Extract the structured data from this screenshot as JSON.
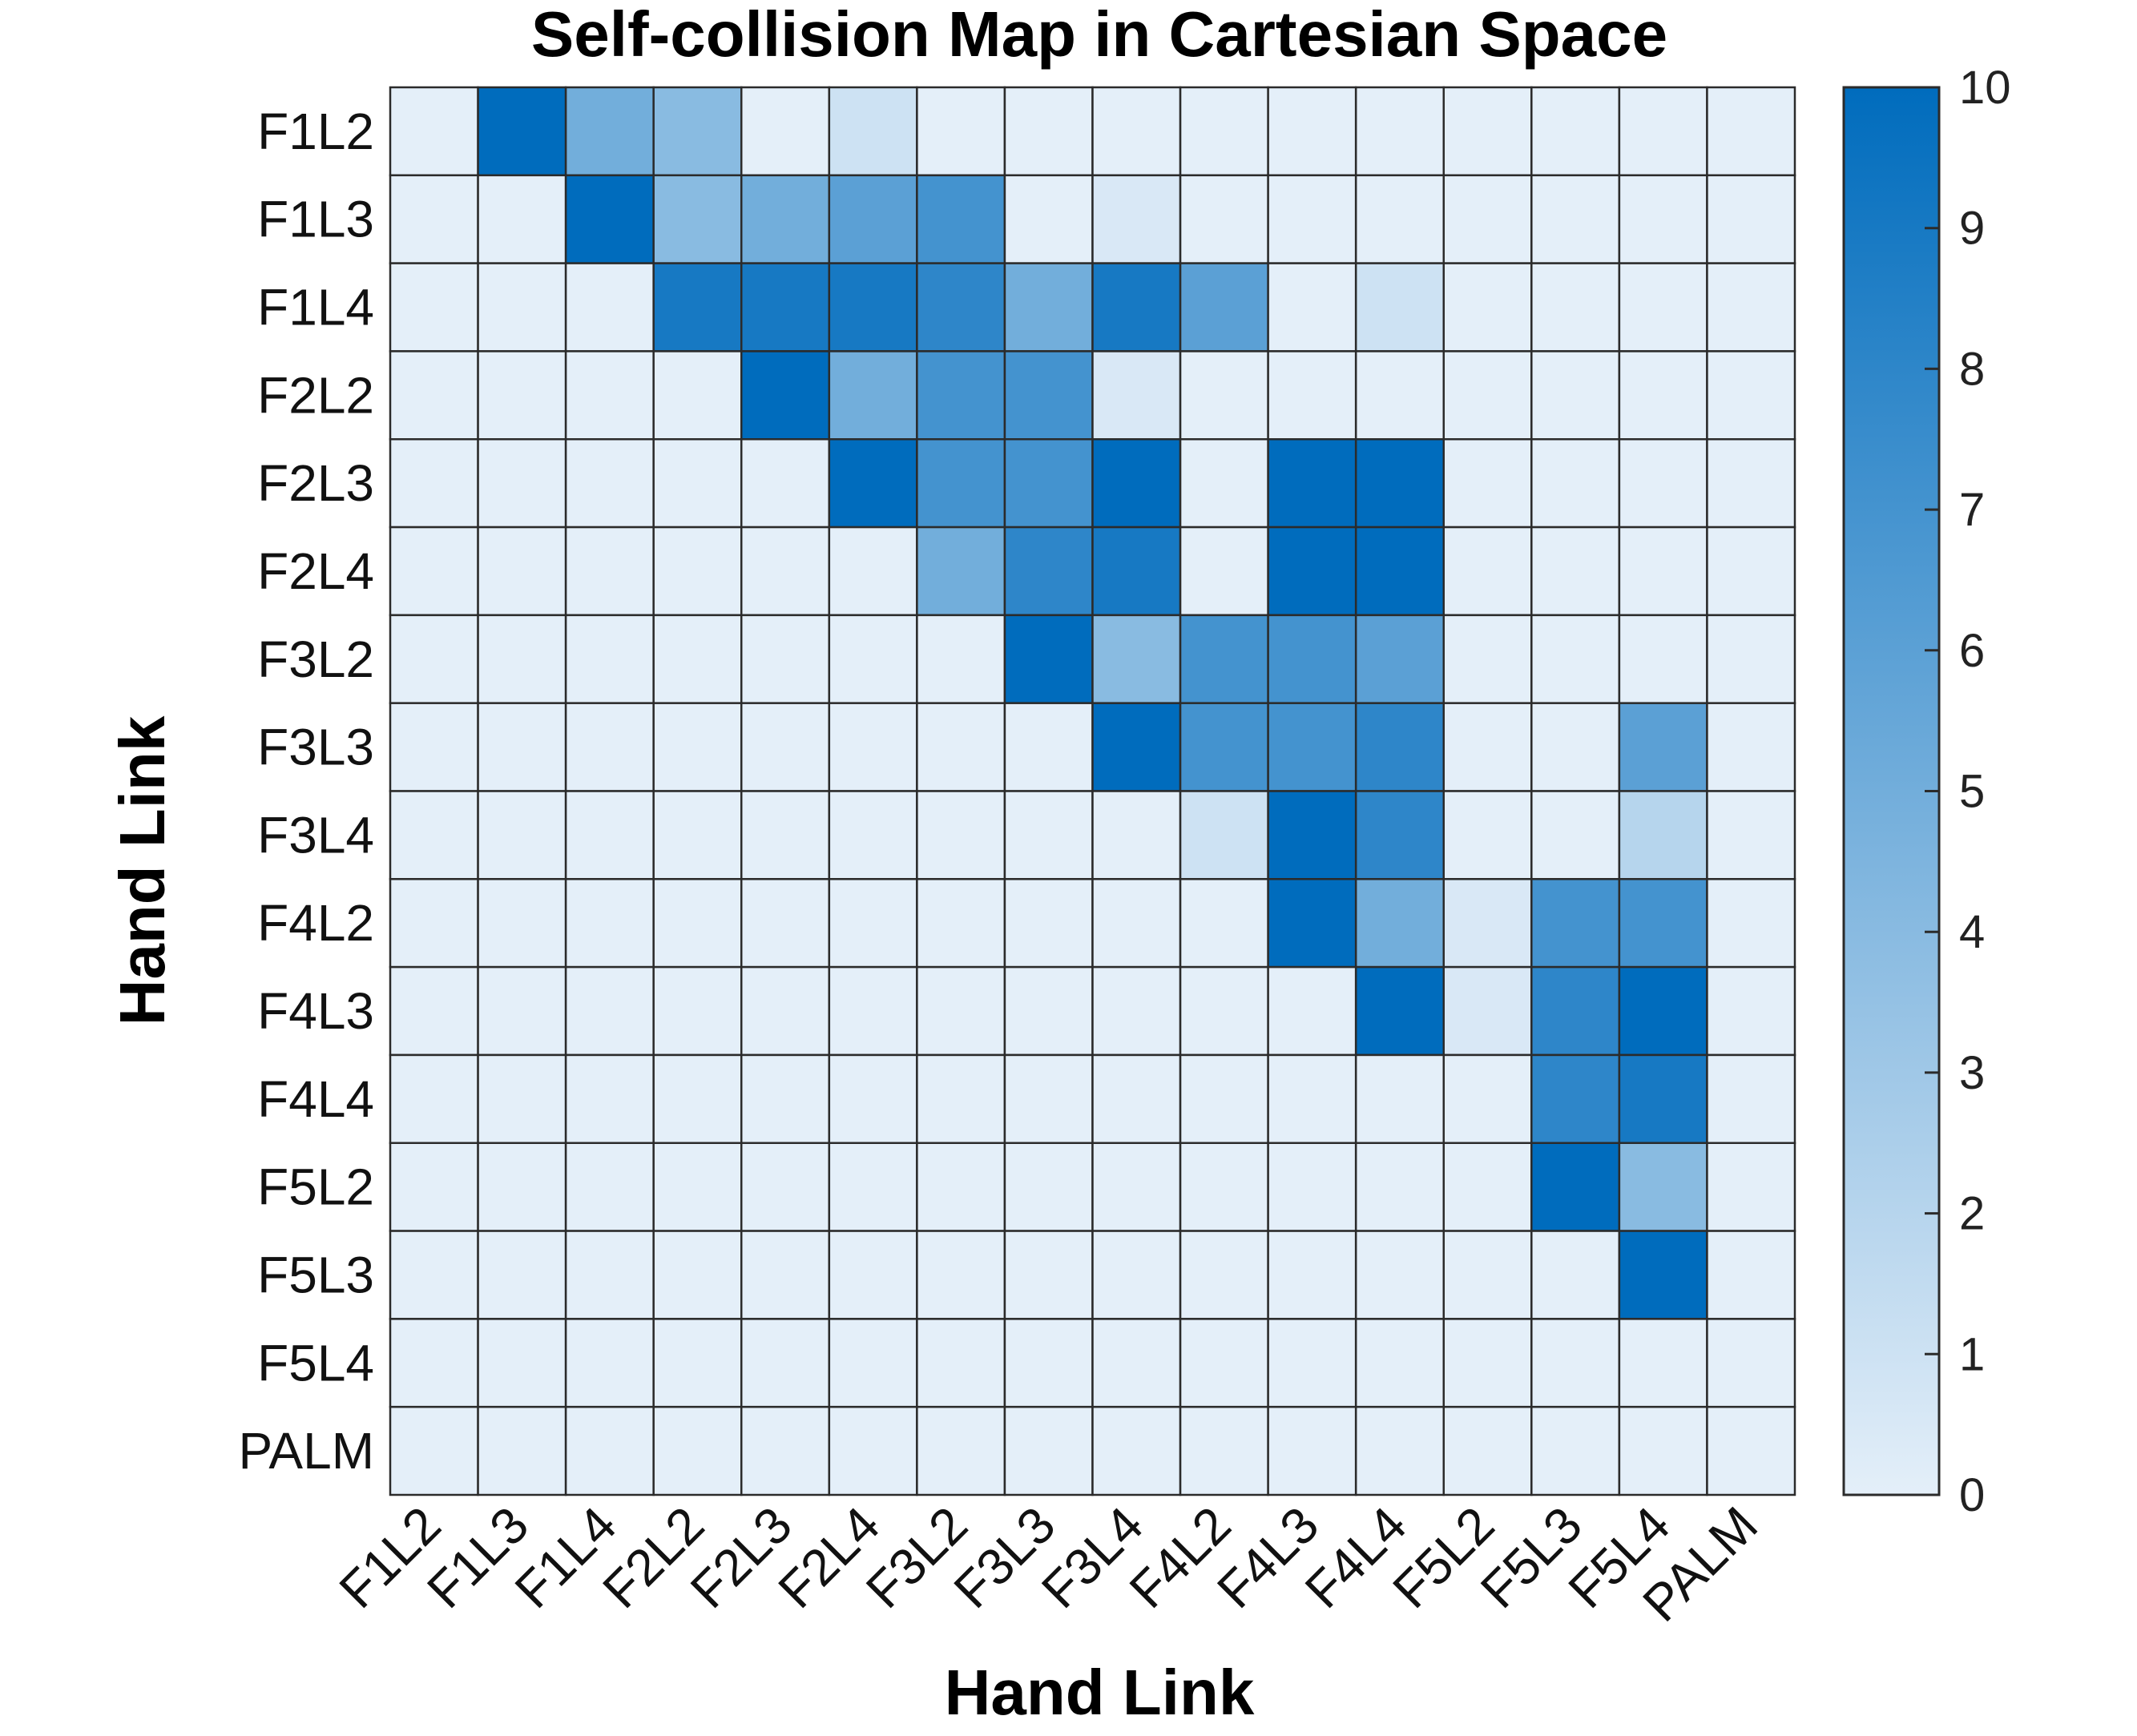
{
  "chart_data": {
    "type": "heatmap",
    "title": "Self-collision Map in Cartesian Space",
    "xlabel": "Hand Link",
    "ylabel": "Hand Link",
    "x_categories": [
      "F1L2",
      "F1L3",
      "F1L4",
      "F2L2",
      "F2L3",
      "F2L4",
      "F3L2",
      "F3L3",
      "F3L4",
      "F4L2",
      "F4L3",
      "F4L4",
      "F5L2",
      "F5L3",
      "F5L4",
      "PALM"
    ],
    "y_categories": [
      "F1L2",
      "F1L3",
      "F1L4",
      "F2L2",
      "F2L3",
      "F2L4",
      "F3L2",
      "F3L3",
      "F3L4",
      "F4L2",
      "F4L3",
      "F4L4",
      "F5L2",
      "F5L3",
      "F5L4",
      "PALM"
    ],
    "values": [
      [
        0,
        10,
        5,
        4,
        0,
        1,
        0,
        0,
        0,
        0,
        0,
        0,
        0,
        0,
        0,
        0
      ],
      [
        0,
        0,
        10,
        4,
        5,
        6,
        7,
        0,
        0.5,
        0,
        0,
        0,
        0,
        0,
        0,
        0
      ],
      [
        0,
        0,
        0,
        9,
        9,
        9,
        8,
        5,
        9,
        6,
        0,
        1,
        0,
        0,
        0,
        0
      ],
      [
        0,
        0,
        0,
        0,
        10,
        5,
        7,
        7,
        0.5,
        0,
        0,
        0,
        0,
        0,
        0,
        0
      ],
      [
        0,
        0,
        0,
        0,
        0,
        10,
        7,
        7,
        10,
        0,
        10,
        10,
        0,
        0,
        0,
        0
      ],
      [
        0,
        0,
        0,
        0,
        0,
        0,
        5,
        8,
        9,
        0,
        10,
        10,
        0,
        0,
        0,
        0
      ],
      [
        0,
        0,
        0,
        0,
        0,
        0,
        0,
        10,
        4,
        7,
        7,
        6,
        0,
        0,
        0,
        0
      ],
      [
        0,
        0,
        0,
        0,
        0,
        0,
        0,
        0,
        10,
        7,
        7,
        8,
        0,
        0,
        6,
        0
      ],
      [
        0,
        0,
        0,
        0,
        0,
        0,
        0,
        0,
        0,
        1,
        10,
        8,
        0,
        0,
        2,
        0
      ],
      [
        0,
        0,
        0,
        0,
        0,
        0,
        0,
        0,
        0,
        0,
        10,
        5,
        0.5,
        7,
        7,
        0
      ],
      [
        0,
        0,
        0,
        0,
        0,
        0,
        0,
        0,
        0,
        0,
        0,
        10,
        0.5,
        8,
        10,
        0
      ],
      [
        0,
        0,
        0,
        0,
        0,
        0,
        0,
        0,
        0,
        0,
        0,
        0,
        0,
        8,
        9,
        0
      ],
      [
        0,
        0,
        0,
        0,
        0,
        0,
        0,
        0,
        0,
        0,
        0,
        0,
        0,
        10,
        4,
        0
      ],
      [
        0,
        0,
        0,
        0,
        0,
        0,
        0,
        0,
        0,
        0,
        0,
        0,
        0,
        0,
        10,
        0
      ],
      [
        0,
        0,
        0,
        0,
        0,
        0,
        0,
        0,
        0,
        0,
        0,
        0,
        0,
        0,
        0,
        0
      ],
      [
        0,
        0,
        0,
        0,
        0,
        0,
        0,
        0,
        0,
        0,
        0,
        0,
        0,
        0,
        0,
        0
      ]
    ],
    "color_range": [
      0,
      10
    ],
    "colorbar": {
      "placement": "right",
      "ticks": [
        "0",
        "1",
        "2",
        "3",
        "4",
        "5",
        "6",
        "7",
        "8",
        "9",
        "10"
      ],
      "color_low": "#e4eff9",
      "color_high": "#006cbd"
    },
    "grid": true,
    "x_tick_rotation": "45deg"
  }
}
